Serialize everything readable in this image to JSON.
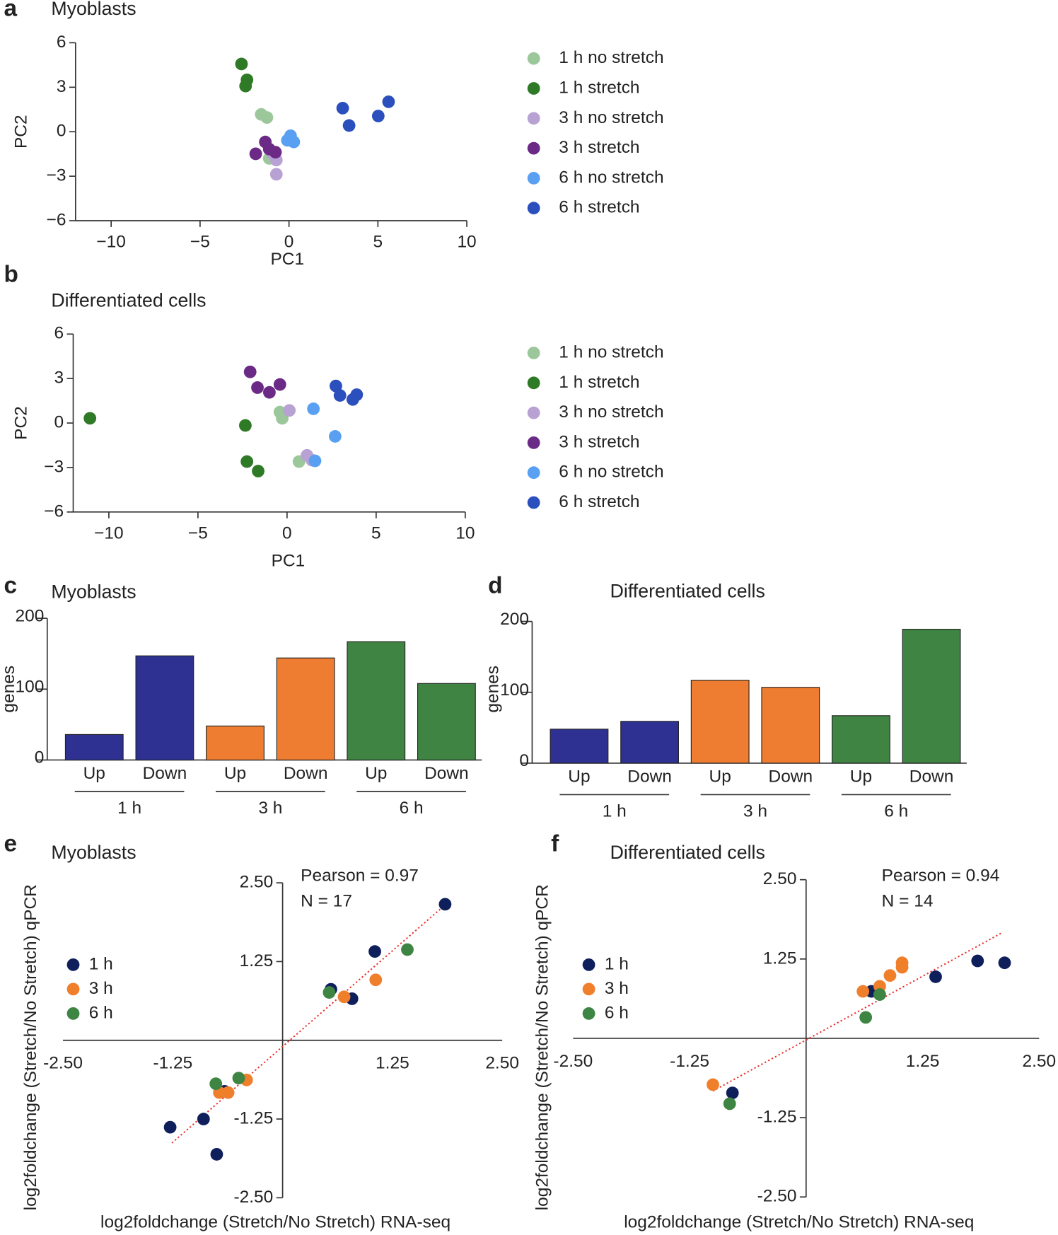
{
  "chart_data": [
    {
      "type": "scatter",
      "panel": "a",
      "title": "Myoblasts",
      "xlabel": "PC1",
      "ylabel": "PC2",
      "axes": "left-bottom",
      "legend": "right",
      "xlim": [
        -12,
        10
      ],
      "ylim": [
        -6,
        6
      ],
      "xticks": [
        {
          "value": -10,
          "label": "−10"
        },
        {
          "value": -5,
          "label": "−5"
        },
        0,
        5,
        10
      ],
      "yticks": [
        {
          "value": -6,
          "label": "−6"
        },
        {
          "value": -3,
          "label": "−3"
        },
        0,
        3,
        6
      ],
      "series": [
        {
          "name": "1 h no stretch",
          "color": "#9cc79b",
          "x": [
            -1.56,
            -1.24,
            -1.11
          ],
          "y": [
            1.17,
            0.96,
            -1.8
          ]
        },
        {
          "name": "1 h stretch",
          "color": "#2f7a26",
          "x": [
            -2.67,
            -2.36,
            -2.44
          ],
          "y": [
            4.57,
            3.5,
            3.08
          ]
        },
        {
          "name": "3 h no stretch",
          "color": "#b8a2d4",
          "x": [
            -0.71,
            -0.71,
            -0.93
          ],
          "y": [
            -1.91,
            -2.87,
            -1.49
          ]
        },
        {
          "name": "3 h stretch",
          "color": "#6b2a86",
          "x": [
            -1.33,
            -1.87,
            -1.11,
            -0.76
          ],
          "y": [
            -0.69,
            -1.49,
            -1.17,
            -1.38
          ]
        },
        {
          "name": "6 h no stretch",
          "color": "#5aa0f2",
          "x": [
            0.09,
            0.27,
            -0.09
          ],
          "y": [
            -0.27,
            -0.69,
            -0.58
          ]
        },
        {
          "name": "6 h stretch",
          "color": "#2b4fbd",
          "x": [
            3.02,
            3.38,
            5.6,
            5.02
          ],
          "y": [
            1.59,
            0.42,
            2.02,
            1.06
          ]
        }
      ]
    },
    {
      "type": "scatter",
      "panel": "b",
      "title": "Differentiated cells",
      "xlabel": "PC1",
      "ylabel": "PC2",
      "axes": "left-bottom",
      "legend": "right",
      "xlim": [
        -12,
        10
      ],
      "ylim": [
        -6,
        6
      ],
      "xticks": [
        {
          "value": -10,
          "label": "−10"
        },
        {
          "value": -5,
          "label": "−5"
        },
        0,
        5,
        10
      ],
      "yticks": [
        {
          "value": -6,
          "label": "−6"
        },
        {
          "value": -3,
          "label": "−3"
        },
        0,
        3,
        6
      ],
      "series": [
        {
          "name": "1 h no stretch",
          "color": "#9cc79b",
          "x": [
            -0.4,
            -0.27,
            0.67
          ],
          "y": [
            0.74,
            0.32,
            -2.6
          ]
        },
        {
          "name": "1 h stretch",
          "color": "#2f7a26",
          "x": [
            -11.06,
            -2.34,
            -2.25,
            -1.62
          ],
          "y": [
            0.32,
            -0.16,
            -2.6,
            -3.24
          ]
        },
        {
          "name": "3 h no stretch",
          "color": "#b8a2d4",
          "x": [
            0.13,
            1.12,
            1.39
          ],
          "y": [
            0.85,
            -2.18,
            -2.5
          ]
        },
        {
          "name": "3 h stretch",
          "color": "#6b2a86",
          "x": [
            -2.07,
            -1.66,
            -0.99,
            -0.4
          ],
          "y": [
            3.45,
            2.39,
            2.07,
            2.6
          ]
        },
        {
          "name": "6 h no stretch",
          "color": "#5aa0f2",
          "x": [
            1.48,
            2.7,
            1.57
          ],
          "y": [
            0.96,
            -0.9,
            -2.55
          ]
        },
        {
          "name": "6 h stretch",
          "color": "#2b4fbd",
          "x": [
            2.74,
            2.97,
            3.69,
            3.91
          ],
          "y": [
            2.5,
            1.86,
            1.59,
            1.91
          ]
        }
      ]
    },
    {
      "type": "bar",
      "panel": "c",
      "title": "Myoblasts",
      "ylabel": "genes",
      "categories": [
        "Up",
        "Down",
        "Up",
        "Down",
        "Up",
        "Down"
      ],
      "groups": [
        "1 h",
        "3 h",
        "6 h"
      ],
      "values": [
        36,
        147,
        48,
        144,
        167,
        108
      ],
      "bar_colors": [
        "#2e3192",
        "#2e3192",
        "#ee7d31",
        "#ee7d31",
        "#3f8443",
        "#3f8443"
      ],
      "ylim": [
        0,
        200
      ],
      "yticks": [
        0,
        100,
        200
      ]
    },
    {
      "type": "bar",
      "panel": "d",
      "title": "Differentiated cells",
      "ylabel": "genes",
      "categories": [
        "Up",
        "Down",
        "Up",
        "Down",
        "Up",
        "Down"
      ],
      "groups": [
        "1 h",
        "3 h",
        "6 h"
      ],
      "values": [
        48,
        59,
        117,
        107,
        67,
        189
      ],
      "bar_colors": [
        "#2e3192",
        "#2e3192",
        "#ee7d31",
        "#ee7d31",
        "#3f8443",
        "#3f8443"
      ],
      "ylim": [
        0,
        200
      ],
      "yticks": [
        0,
        100,
        200
      ]
    },
    {
      "type": "scatter",
      "panel": "e",
      "title": "Myoblasts",
      "axes": "origin",
      "legend": "upper left",
      "xlabel": "log2foldchange (Stretch/No Stretch) RNA-seq",
      "ylabel": "log2foldchange (Stretch/No Stretch) qPCR",
      "annotations": [
        "Pearson = 0.97",
        "N = 17"
      ],
      "xlim": [
        -2.5,
        2.5
      ],
      "ylim": [
        -2.5,
        2.5
      ],
      "xticks": [
        {
          "value": -2.5,
          "label": "-2.50"
        },
        -1.25,
        1.25,
        {
          "value": 2.5,
          "label": "2.50"
        }
      ],
      "yticks": [
        {
          "value": -2.5,
          "label": "-2.50"
        },
        -1.25,
        1.25,
        {
          "value": 2.5,
          "label": "2.50"
        }
      ],
      "fit_line": {
        "color": "#e8302a",
        "x": [
          -1.26,
          1.85
        ],
        "y": [
          -1.63,
          2.15
        ]
      },
      "series": [
        {
          "name": "1 h",
          "color": "#0f1f5c",
          "x": [
            1.85,
            1.05,
            0.55,
            0.79,
            -0.66,
            -0.9,
            -1.28,
            -0.75
          ],
          "y": [
            2.16,
            1.41,
            0.81,
            0.66,
            -0.81,
            -1.25,
            -1.38,
            -1.81
          ]
        },
        {
          "name": "3 h",
          "color": "#f07f2c",
          "x": [
            1.06,
            0.7,
            -0.41,
            -0.62,
            -0.72
          ],
          "y": [
            0.96,
            0.69,
            -0.63,
            -0.83,
            -0.83
          ]
        },
        {
          "name": "6 h",
          "color": "#3e8442",
          "x": [
            1.42,
            0.53,
            -0.5,
            -0.76
          ],
          "y": [
            1.44,
            0.76,
            -0.6,
            -0.69
          ]
        }
      ]
    },
    {
      "type": "scatter",
      "panel": "f",
      "title": "Differentiated cells",
      "axes": "origin",
      "legend": "upper left",
      "xlabel": "log2foldchange (Stretch/No Stretch) RNA-seq",
      "ylabel": "log2foldchange (Stretch/No Stretch) qPCR",
      "annotations": [
        "Pearson = 0.94",
        "N = 14"
      ],
      "xlim": [
        -2.5,
        2.5
      ],
      "ylim": [
        -2.5,
        2.5
      ],
      "xticks": [
        {
          "value": -2.5,
          "label": "-2.50"
        },
        -1.25,
        1.25,
        {
          "value": 2.5,
          "label": "2.50"
        }
      ],
      "yticks": [
        {
          "value": -2.5,
          "label": "-2.50"
        },
        -1.25,
        1.25,
        {
          "value": 2.5,
          "label": "2.50"
        }
      ],
      "fit_line": {
        "color": "#e8302a",
        "x": [
          -1.0,
          2.11
        ],
        "y": [
          -0.83,
          1.67
        ]
      },
      "series": [
        {
          "name": "1 h",
          "color": "#0f1f5c",
          "x": [
            1.84,
            2.13,
            1.39,
            0.7,
            -0.79
          ],
          "y": [
            1.22,
            1.19,
            0.97,
            0.74,
            -0.86
          ]
        },
        {
          "name": "3 h",
          "color": "#f07f2c",
          "x": [
            1.03,
            1.03,
            0.9,
            0.79,
            0.61,
            -1.0
          ],
          "y": [
            1.19,
            1.12,
            0.99,
            0.82,
            0.74,
            -0.73
          ]
        },
        {
          "name": "6 h",
          "color": "#3e8442",
          "x": [
            0.79,
            0.64,
            -0.82
          ],
          "y": [
            0.69,
            0.33,
            -1.03
          ]
        }
      ]
    }
  ]
}
